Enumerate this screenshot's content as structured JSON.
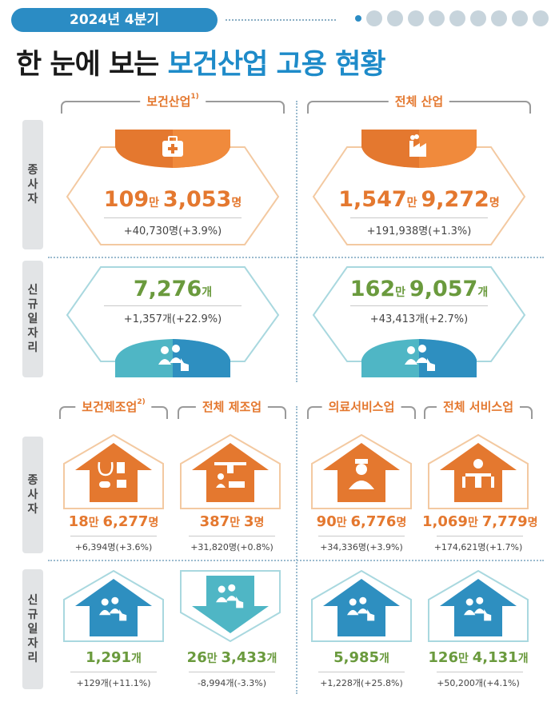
{
  "header": {
    "badge": "2024년 4분기",
    "title_part1": "한 눈에 보는 ",
    "title_part2": "보건산업 고용 현황"
  },
  "colors": {
    "orange": "#e4782f",
    "blue": "#1e8bc9",
    "green": "#6a9a3d",
    "teal": "#4fb6c5"
  },
  "side_labels": {
    "employees": "종\n사\n자",
    "new_jobs": "신\n규\n일\n자\n리"
  },
  "top": {
    "health": {
      "label": "보건산업",
      "sup": "1)",
      "employees_big": "109",
      "employees_unit1": "만 ",
      "employees_rest": "3,053",
      "employees_unit2": "명",
      "employees_delta": "+40,730명(+3.9%)",
      "jobs_big": "7,276",
      "jobs_unit": "개",
      "jobs_delta": "+1,357개(+22.9%)"
    },
    "all": {
      "label": "전체 산업",
      "employees_big": "1,547",
      "employees_unit1": "만 ",
      "employees_rest": "9,272",
      "employees_unit2": "명",
      "employees_delta": "+191,938명(+1.3%)",
      "jobs_big": "162",
      "jobs_unit1": "만 ",
      "jobs_rest": "9,057",
      "jobs_unit2": "개",
      "jobs_delta": "+43,413개(+2.7%)"
    }
  },
  "bottom": {
    "health_mfg": {
      "label": "보건제조업",
      "sup": "2)",
      "emp_big": "18",
      "emp_unit1": "만 ",
      "emp_rest": "6,277",
      "emp_unit2": "명",
      "emp_delta": "+6,394명(+3.6%)",
      "jobs_big": "1,291",
      "jobs_unit": "개",
      "jobs_delta": "+129개(+11.1%)"
    },
    "all_mfg": {
      "label": "전체 제조업",
      "emp_big": "387",
      "emp_unit1": "만 ",
      "emp_rest": "3",
      "emp_unit2": "명",
      "emp_delta": "+31,820명(+0.8%)",
      "jobs_big": "26",
      "jobs_unit1": "만 ",
      "jobs_rest": "3,433",
      "jobs_unit2": "개",
      "jobs_delta": "-8,994개(-3.3%)"
    },
    "medical_svc": {
      "label": "의료서비스업",
      "emp_big": "90",
      "emp_unit1": "만 ",
      "emp_rest": "6,776",
      "emp_unit2": "명",
      "emp_delta": "+34,336명(+3.9%)",
      "jobs_big": "5,985",
      "jobs_unit": "개",
      "jobs_delta": "+1,228개(+25.8%)"
    },
    "all_svc": {
      "label": "전체 서비스업",
      "emp_big": "1,069",
      "emp_unit1": "만 ",
      "emp_rest": "7,779",
      "emp_unit2": "명",
      "emp_delta": "+174,621명(+1.7%)",
      "jobs_big": "126",
      "jobs_unit1": "만 ",
      "jobs_rest": "4,131",
      "jobs_unit2": "개",
      "jobs_delta": "+50,200개(+4.1%)"
    }
  },
  "icons": {
    "header_strip": [
      "pill-icon",
      "stethoscope-icon",
      "iv-icon",
      "syringe-icon",
      "bed-icon",
      "flask-icon",
      "mortar-icon",
      "bandage-icon",
      "needle-icon"
    ],
    "top": [
      "first-aid-kit-icon",
      "factory-icon",
      "workers-icon",
      "workers-icon"
    ],
    "bottom": [
      "medical-equipment-icon",
      "assembly-line-icon",
      "nurse-icon",
      "restaurant-icon",
      "workers-up-icon",
      "workers-down-icon",
      "workers-up-icon",
      "workers-up-icon"
    ]
  }
}
